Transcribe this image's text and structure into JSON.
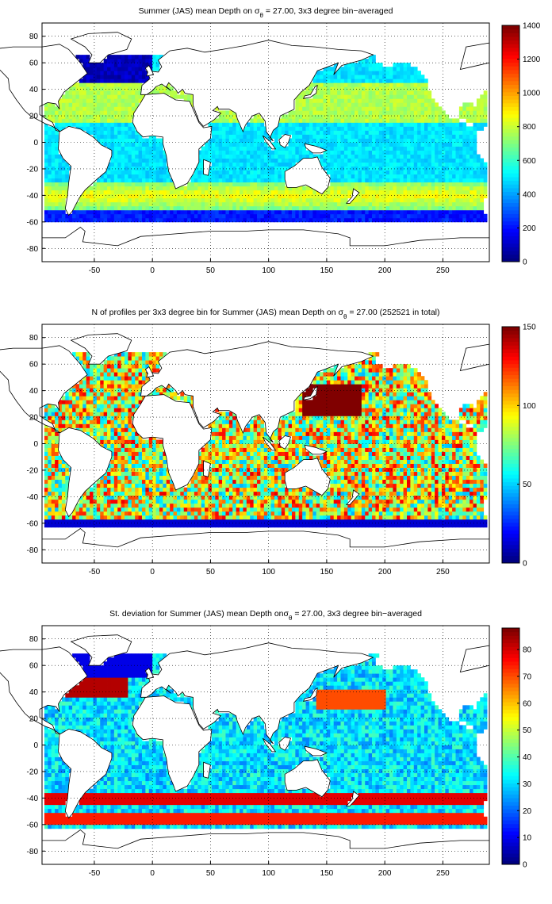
{
  "chart_data": [
    {
      "type": "heatmap",
      "title": "Summer (JAS) mean Depth on σθ = 27.00, 3x3 degree bin−averaged",
      "title_parts": {
        "pre": "Summer (JAS) mean Depth on σ",
        "sub": "θ",
        "post": " = 27.00, 3x3 degree bin−averaged"
      },
      "xlim": [
        -95,
        290
      ],
      "ylim": [
        -90,
        90
      ],
      "x_ticks": [
        -50,
        0,
        50,
        100,
        150,
        200,
        250
      ],
      "y_ticks": [
        -80,
        -60,
        -40,
        -20,
        0,
        20,
        40,
        60,
        80
      ],
      "grid": true,
      "colorbar": {
        "range": [
          0,
          1400
        ],
        "ticks": [
          0,
          200,
          400,
          600,
          800,
          1000,
          1200,
          1400
        ],
        "colormap": "jet"
      }
    },
    {
      "type": "heatmap",
      "title": "N of profiles per 3x3 degree bin for Summer (JAS) mean Depth on σθ = 27.00 (252521 in total)",
      "title_parts": {
        "pre": "N of profiles per 3x3 degree bin for Summer (JAS) mean Depth on σ",
        "sub": "θ",
        "post": " = 27.00 (252521 in total)"
      },
      "xlim": [
        -95,
        290
      ],
      "ylim": [
        -90,
        90
      ],
      "x_ticks": [
        -50,
        0,
        50,
        100,
        150,
        200,
        250
      ],
      "y_ticks": [
        -80,
        -60,
        -40,
        -20,
        0,
        20,
        40,
        60,
        80
      ],
      "grid": true,
      "colorbar": {
        "range": [
          0,
          150
        ],
        "ticks": [
          0,
          50,
          100,
          150
        ],
        "colormap": "jet"
      }
    },
    {
      "type": "heatmap",
      "title": "St. deviation for Summer (JAS) mean Depth onσθ = 27.00, 3x3 degree bin−averaged",
      "title_parts": {
        "pre": "St. deviation for Summer (JAS) mean Depth onσ",
        "sub": "θ",
        "post": " = 27.00, 3x3 degree bin−averaged"
      },
      "xlim": [
        -95,
        290
      ],
      "ylim": [
        -90,
        90
      ],
      "x_ticks": [
        -50,
        0,
        50,
        100,
        150,
        200,
        250
      ],
      "y_ticks": [
        -80,
        -60,
        -40,
        -20,
        0,
        20,
        40,
        60,
        80
      ],
      "grid": true,
      "colorbar": {
        "range": [
          0,
          88
        ],
        "ticks": [
          0,
          10,
          20,
          30,
          40,
          50,
          60,
          70,
          80
        ],
        "colormap": "jet"
      }
    }
  ]
}
